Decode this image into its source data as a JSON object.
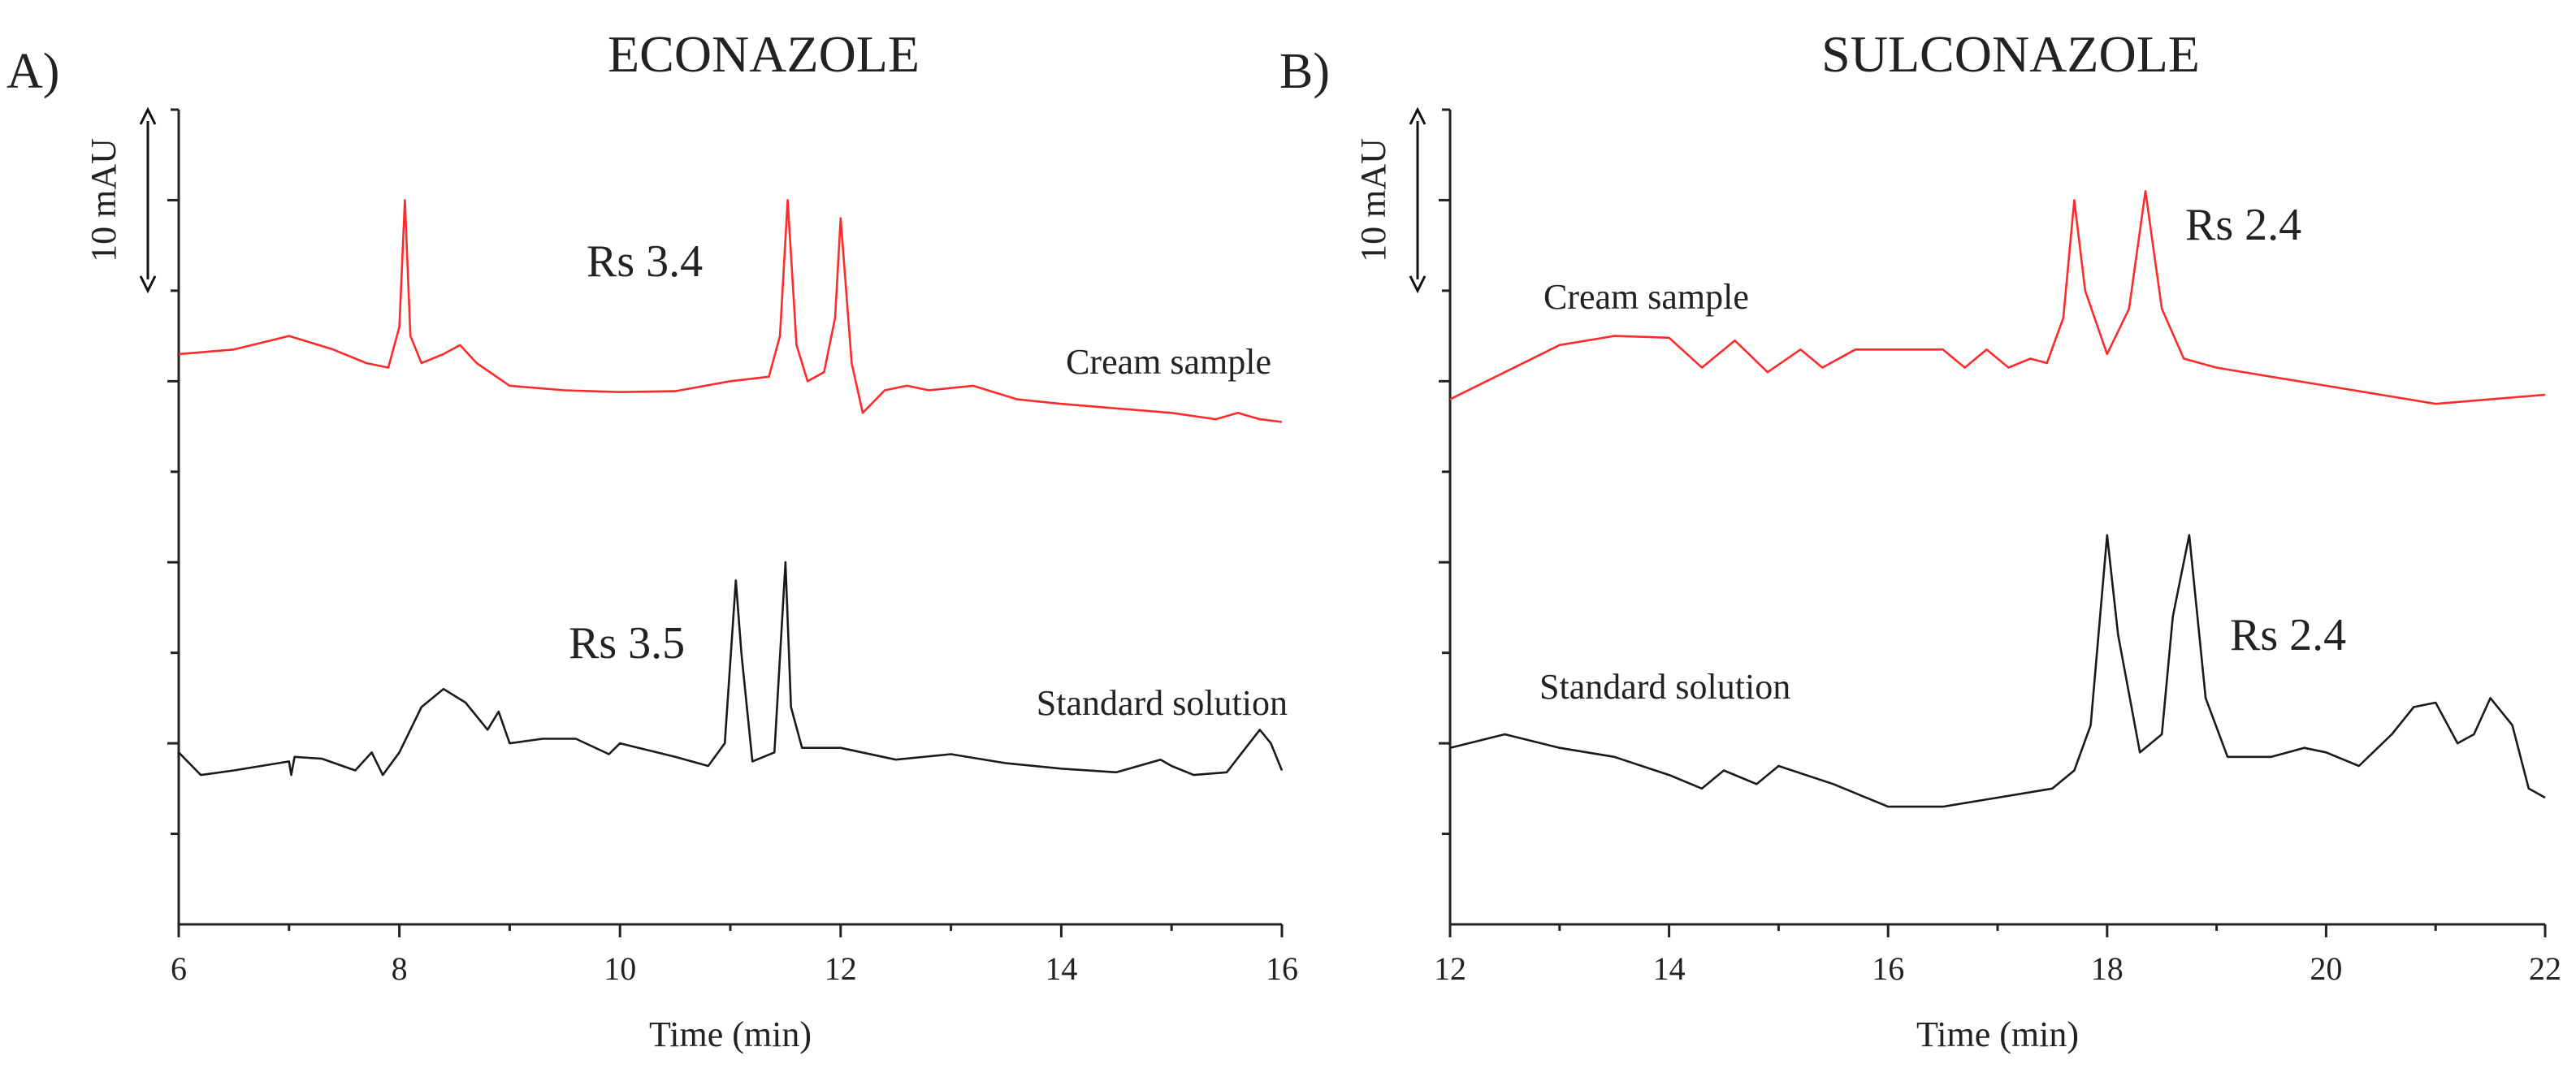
{
  "chart_data": [
    {
      "type": "line",
      "panel": "A)",
      "title": "ECONAZOLE",
      "xlabel": "Time (min)",
      "ylabel": "",
      "xlim": [
        6,
        16
      ],
      "xticks": [
        "6",
        "8",
        "10",
        "12",
        "14",
        "16"
      ],
      "ylim": [
        0,
        90
      ],
      "scale_bar": {
        "label": "10 mAU",
        "from": 70,
        "to": 90
      },
      "series": [
        {
          "name": "Cream sample",
          "color": "#ff2a2a",
          "label": "Cream sample",
          "rs_label": "Rs 3.4",
          "x": [
            6.0,
            6.5,
            7.0,
            7.4,
            7.7,
            7.9,
            8.0,
            8.05,
            8.1,
            8.2,
            8.4,
            8.55,
            8.7,
            9.0,
            9.5,
            10.0,
            10.5,
            11.0,
            11.35,
            11.45,
            11.52,
            11.6,
            11.7,
            11.85,
            11.95,
            12.0,
            12.1,
            12.2,
            12.4,
            12.6,
            12.8,
            13.2,
            13.6,
            14.0,
            14.5,
            15.0,
            15.4,
            15.6,
            15.8,
            16.0
          ],
          "y": [
            63,
            63.5,
            65,
            63.5,
            62,
            61.5,
            66,
            80,
            65,
            62,
            63,
            64,
            62,
            59.5,
            59,
            58.8,
            58.9,
            60,
            60.5,
            65,
            80,
            64,
            60,
            61,
            67,
            78,
            62,
            56.5,
            59,
            59.5,
            59,
            59.5,
            58,
            57.5,
            57,
            56.5,
            55.8,
            56.5,
            55.8,
            55.5
          ]
        },
        {
          "name": "Standard solution",
          "color": "#1a1a1a",
          "label": "Standard solution",
          "rs_label": "Rs 3.5",
          "x": [
            6.0,
            6.2,
            6.5,
            7.0,
            7.02,
            7.05,
            7.3,
            7.6,
            7.75,
            7.85,
            8.0,
            8.2,
            8.4,
            8.6,
            8.8,
            8.9,
            9.0,
            9.3,
            9.6,
            9.9,
            10.0,
            10.5,
            10.8,
            10.95,
            11.05,
            11.1,
            11.2,
            11.4,
            11.5,
            11.55,
            11.65,
            12.0,
            12.5,
            13.0,
            13.5,
            14.0,
            14.5,
            14.9,
            15.0,
            15.2,
            15.5,
            15.8,
            15.9,
            16.0
          ],
          "y": [
            19,
            16.5,
            17,
            18,
            16.5,
            18.5,
            18.3,
            17,
            19,
            16.5,
            19,
            24,
            26,
            24.5,
            21.5,
            23.5,
            20,
            20.5,
            20.5,
            18.8,
            20,
            18.5,
            17.5,
            20,
            38,
            30,
            18,
            19,
            40,
            24,
            19.5,
            19.5,
            18.2,
            18.8,
            17.8,
            17.2,
            16.8,
            18.2,
            17.5,
            16.5,
            16.8,
            21.5,
            20,
            17
          ]
        }
      ]
    },
    {
      "type": "line",
      "panel": "B)",
      "title": "SULCONAZOLE",
      "xlabel": "Time (min)",
      "ylabel": "",
      "xlim": [
        12,
        22
      ],
      "xticks": [
        "12",
        "14",
        "16",
        "18",
        "20",
        "22"
      ],
      "ylim": [
        0,
        90
      ],
      "scale_bar": {
        "label": "10 mAU",
        "from": 70,
        "to": 90
      },
      "series": [
        {
          "name": "Cream sample",
          "color": "#ff2a2a",
          "label": "Cream sample",
          "rs_label": "Rs 2.4",
          "x": [
            12.0,
            12.5,
            13.0,
            13.5,
            14.0,
            14.3,
            14.6,
            14.9,
            15.2,
            15.4,
            15.7,
            16.0,
            16.5,
            16.7,
            16.9,
            17.1,
            17.3,
            17.45,
            17.6,
            17.7,
            17.8,
            18.0,
            18.2,
            18.35,
            18.5,
            18.7,
            19.0,
            19.5,
            20.0,
            20.5,
            21.0,
            21.5,
            22.0
          ],
          "y": [
            58,
            61,
            64,
            65,
            64.8,
            61.5,
            64.5,
            61,
            63.5,
            61.5,
            63.5,
            63.5,
            63.5,
            61.5,
            63.5,
            61.5,
            62.5,
            62,
            67,
            80,
            70,
            63,
            68,
            81,
            68,
            62.5,
            61.5,
            60.5,
            59.5,
            58.5,
            57.5,
            58,
            58.5
          ]
        },
        {
          "name": "Standard solution",
          "color": "#1a1a1a",
          "label": "Standard solution",
          "rs_label": "Rs 2.4",
          "x": [
            12.0,
            12.5,
            13.0,
            13.5,
            14.0,
            14.3,
            14.5,
            14.8,
            15.0,
            15.5,
            16.0,
            16.5,
            17.0,
            17.5,
            17.7,
            17.85,
            18.0,
            18.1,
            18.3,
            18.5,
            18.6,
            18.75,
            18.9,
            19.1,
            19.5,
            19.8,
            20.0,
            20.3,
            20.6,
            20.8,
            21.0,
            21.2,
            21.35,
            21.5,
            21.7,
            21.85,
            22.0
          ],
          "y": [
            19.5,
            21,
            19.5,
            18.5,
            16.5,
            15,
            17,
            15.5,
            17.5,
            15.5,
            13,
            13,
            14,
            15,
            17,
            22,
            43,
            32,
            19,
            21,
            34,
            43,
            25,
            18.5,
            18.5,
            19.5,
            19,
            17.5,
            21,
            24,
            24.5,
            20,
            21,
            25,
            22,
            15,
            14
          ]
        }
      ]
    }
  ]
}
